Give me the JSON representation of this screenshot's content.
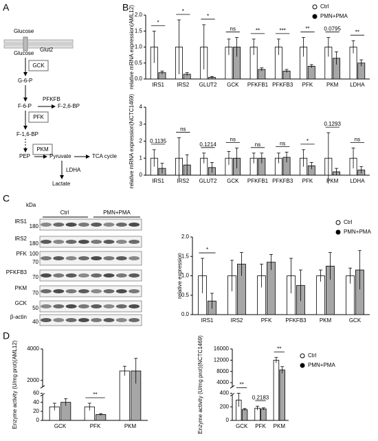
{
  "panels": [
    "A",
    "B",
    "C",
    "D"
  ],
  "pathway": {
    "glucose_out": "Glucose",
    "transporter": "Glut2",
    "glucose_in": "Glucose",
    "gck": "GCK",
    "g6p": "G-6-P",
    "pfkfb": "PFKFB",
    "f6p": "F-6-P",
    "f26bp": "F-2,6-BP",
    "pfk": "PFK",
    "f16bp": "F-1,6-BP",
    "pkm": "PKM",
    "pep": "PEP",
    "pyruvate": "Pyruvate",
    "tca": "TCA cycle",
    "ldha": "LDHA",
    "lactate": "Lactate"
  },
  "blot": {
    "unit": "kDa",
    "groups": [
      "Ctrl",
      "PMN+PMA"
    ],
    "rows": [
      {
        "name": "IRS1",
        "kda": [
          "180"
        ]
      },
      {
        "name": "IRS2",
        "kda": [
          "180"
        ]
      },
      {
        "name": "PFK",
        "kda": [
          "100",
          "70"
        ]
      },
      {
        "name": "PFKFB3",
        "kda": [
          "70"
        ]
      },
      {
        "name": "PKM",
        "kda": [
          "70"
        ]
      },
      {
        "name": "GCK",
        "kda": [
          "50"
        ]
      },
      {
        "name": "β-actin",
        "kda": [
          "40"
        ]
      }
    ]
  },
  "chart_data": [
    {
      "type": "bar",
      "ylabel": "relative mRNA expression(AML12)",
      "categories": [
        "IRS1",
        "IRS2",
        "GLUT2",
        "GCK",
        "PFKFB1",
        "PFKFB3",
        "PFK",
        "PKM",
        "LDHA"
      ],
      "series": [
        {
          "name": "Ctrl",
          "color": "#ffffff",
          "values": [
            1.0,
            1.0,
            1.0,
            1.0,
            1.0,
            1.0,
            1.0,
            1.0,
            1.0
          ],
          "errors": [
            0.5,
            0.85,
            0.7,
            0.25,
            0.25,
            0.25,
            0.3,
            0.3,
            0.2
          ]
        },
        {
          "name": "PMN+PMA",
          "color": "#a6a6a6",
          "values": [
            0.2,
            0.15,
            0.05,
            1.0,
            0.3,
            0.25,
            0.4,
            0.65,
            0.5
          ],
          "errors": [
            0.05,
            0.05,
            0.03,
            0.3,
            0.05,
            0.05,
            0.05,
            0.2,
            0.1
          ]
        }
      ],
      "annotations": [
        "*",
        "*",
        "*",
        "ns",
        "**",
        "***",
        "**",
        "0.0795",
        "**"
      ],
      "ylim": [
        0,
        2
      ],
      "yticks": [
        {
          "value": 0,
          "label": "0.0"
        },
        {
          "value": 0.5,
          "label": "0.5"
        },
        {
          "value": 1,
          "label": "1.0"
        },
        {
          "value": 1.5,
          "label": "1.5"
        },
        {
          "value": 2,
          "label": "2.0"
        }
      ],
      "legend": true
    },
    {
      "type": "bar",
      "ylabel": "relative mRNA expression(NCTC1469)",
      "categories": [
        "IRS1",
        "IRS2",
        "GLUT2",
        "GCK",
        "PFKFB1",
        "PFKFB3",
        "PFK",
        "PKM",
        "LDHA"
      ],
      "series": [
        {
          "name": "Ctrl",
          "color": "#ffffff",
          "values": [
            1.0,
            1.0,
            1.0,
            1.0,
            1.0,
            1.0,
            1.0,
            1.0,
            1.0
          ],
          "errors": [
            0.5,
            1.2,
            0.3,
            0.4,
            0.3,
            0.3,
            0.5,
            1.5,
            0.6
          ]
        },
        {
          "name": "PMN+PMA",
          "color": "#a6a6a6",
          "values": [
            0.4,
            0.6,
            0.45,
            1.0,
            1.0,
            1.05,
            0.55,
            0.2,
            0.3
          ],
          "errors": [
            0.3,
            0.6,
            0.3,
            0.6,
            0.3,
            0.3,
            0.2,
            0.2,
            0.2
          ]
        }
      ],
      "annotations": [
        "0.1135",
        "ns",
        "0.1214",
        "ns",
        "ns",
        "ns",
        "*",
        "0.1293",
        "ns"
      ],
      "ylim": [
        0,
        4
      ],
      "yticks": [
        0,
        1,
        2,
        3,
        4
      ],
      "legend": false
    },
    {
      "type": "bar",
      "ylabel": "relative expression",
      "categories": [
        "IRS1",
        "IRS2",
        "PFK",
        "PFKFB3",
        "PKM",
        "GCK"
      ],
      "series": [
        {
          "name": "Ctrl",
          "color": "#ffffff",
          "values": [
            1.0,
            1.0,
            1.0,
            1.0,
            1.0,
            1.0
          ],
          "errors": [
            0.45,
            0.4,
            0.3,
            0.45,
            0.15,
            0.2
          ]
        },
        {
          "name": "PMN+PMA",
          "color": "#a6a6a6",
          "values": [
            0.35,
            1.3,
            1.35,
            0.75,
            1.25,
            1.15
          ],
          "errors": [
            0.2,
            0.3,
            0.2,
            0.4,
            0.35,
            0.5
          ]
        }
      ],
      "annotations": [
        "*",
        null,
        null,
        null,
        null,
        null
      ],
      "ylim": [
        0,
        2
      ],
      "yticks": [
        {
          "value": 0,
          "label": "0.0"
        },
        {
          "value": 0.5,
          "label": "0.5"
        },
        {
          "value": 1,
          "label": "1.0"
        },
        {
          "value": 1.5,
          "label": "1.5"
        },
        {
          "value": 2,
          "label": "2.0"
        }
      ],
      "legend": true
    },
    {
      "type": "bar",
      "ylabel": "Enzyme activity (U/mg prot)(AML12)",
      "categories": [
        "GCK",
        "PFK",
        "PKM"
      ],
      "series": [
        {
          "name": "Ctrl",
          "color": "#ffffff",
          "values": [
            30,
            30,
            2600
          ],
          "errors": [
            8,
            8,
            300
          ]
        },
        {
          "name": "PMN+PMA",
          "color": "#a6a6a6",
          "values": [
            40,
            13,
            2600
          ],
          "errors": [
            8,
            2,
            800
          ]
        }
      ],
      "annotations": [
        null,
        "**",
        null
      ],
      "ylim": [
        0,
        4000
      ],
      "ybreak": [
        60,
        1500
      ],
      "yticks": [
        0,
        20,
        40,
        60,
        2000,
        4000
      ],
      "legend": false
    },
    {
      "type": "bar",
      "ylabel": "Enzyme activity (U/mg prot)(NCTC1469)",
      "categories": [
        "GCK",
        "PFK",
        "PKM"
      ],
      "series": [
        {
          "name": "Ctrl",
          "color": "#ffffff",
          "values": [
            300,
            180,
            12000
          ],
          "errors": [
            100,
            30,
            1000
          ]
        },
        {
          "name": "PMN+PMA",
          "color": "#a6a6a6",
          "values": [
            160,
            170,
            8500
          ],
          "errors": [
            15,
            15,
            1200
          ]
        }
      ],
      "annotations": [
        "**",
        "0.2183",
        "**"
      ],
      "ylim": [
        0,
        16000
      ],
      "ybreak": [
        400,
        2000
      ],
      "yticks": [
        0,
        200,
        400,
        4000,
        8000,
        12000,
        16000
      ],
      "legend": true
    }
  ]
}
